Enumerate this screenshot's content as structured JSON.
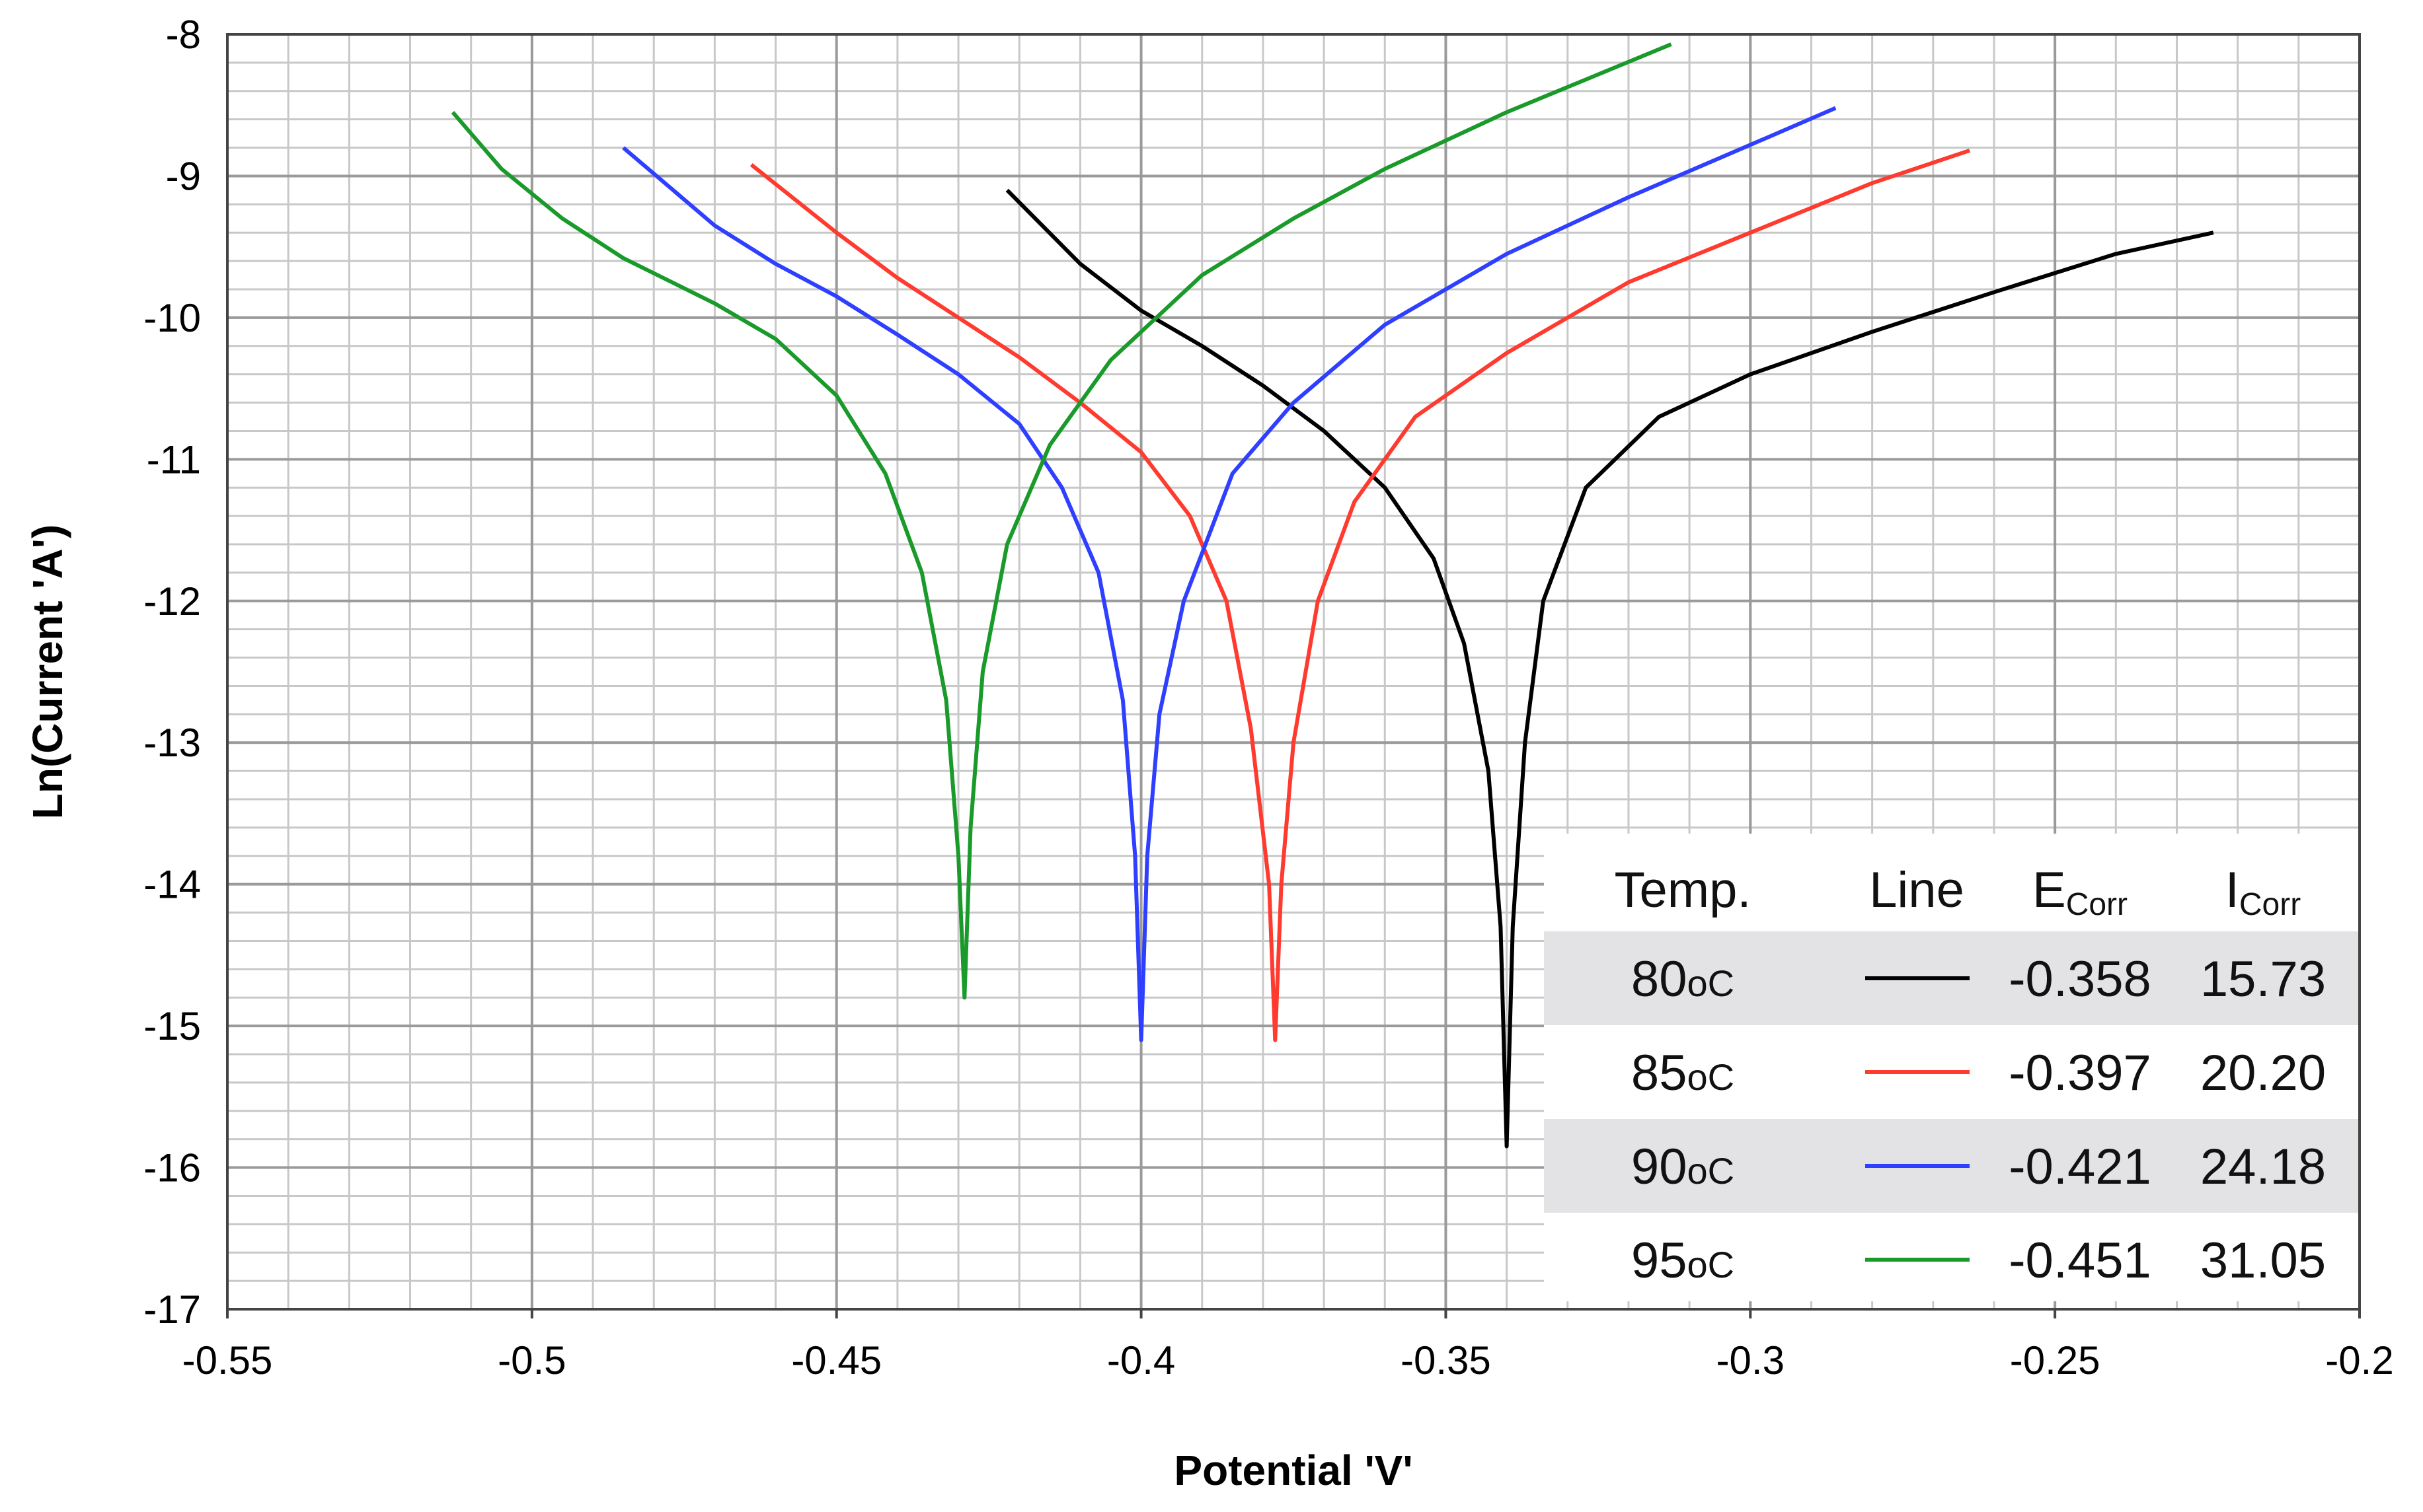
{
  "chart_data": {
    "type": "line",
    "title": "",
    "xlabel": "Potential 'V'",
    "ylabel": "Ln(Current 'A')",
    "xlim": [
      -0.55,
      -0.2
    ],
    "ylim": [
      -17,
      -8
    ],
    "x_major_ticks": [
      -0.55,
      -0.5,
      -0.45,
      -0.4,
      -0.35,
      -0.3,
      -0.25,
      -0.2
    ],
    "x_tick_labels": [
      "-0.55",
      "-0.5",
      "-0.45",
      "-0.4",
      "-0.35",
      "-0.3",
      "-0.25",
      "-0.2"
    ],
    "y_major_ticks": [
      -8,
      -9,
      -10,
      -11,
      -12,
      -13,
      -14,
      -15,
      -16,
      -17
    ],
    "y_tick_labels": [
      "-8",
      "-9",
      "-10",
      "-11",
      "-12",
      "-13",
      "-14",
      "-15",
      "-16",
      "-17"
    ],
    "grid": true,
    "legend_header": {
      "temp": "Temp.",
      "line": "Line",
      "ecorr": "E",
      "ecorr_sub": "Corr",
      "icorr": "I",
      "icorr_sub": "Corr"
    },
    "series": [
      {
        "name": "80oC",
        "temp": "80",
        "unit": "oC",
        "color": "#000000",
        "ecorr": "-0.358",
        "icorr": "15.73",
        "points": [
          [
            -0.422,
            -9.1
          ],
          [
            -0.41,
            -9.62
          ],
          [
            -0.4,
            -9.95
          ],
          [
            -0.39,
            -10.2
          ],
          [
            -0.38,
            -10.48
          ],
          [
            -0.37,
            -10.8
          ],
          [
            -0.36,
            -11.2
          ],
          [
            -0.352,
            -11.7
          ],
          [
            -0.347,
            -12.3
          ],
          [
            -0.343,
            -13.2
          ],
          [
            -0.341,
            -14.3
          ],
          [
            -0.34,
            -15.85
          ],
          [
            -0.339,
            -14.3
          ],
          [
            -0.337,
            -13.0
          ],
          [
            -0.334,
            -12.0
          ],
          [
            -0.327,
            -11.2
          ],
          [
            -0.315,
            -10.7
          ],
          [
            -0.3,
            -10.4
          ],
          [
            -0.28,
            -10.1
          ],
          [
            -0.26,
            -9.82
          ],
          [
            -0.24,
            -9.55
          ],
          [
            -0.224,
            -9.4
          ]
        ]
      },
      {
        "name": "85oC",
        "temp": "85",
        "unit": "oC",
        "color": "#ff3b30",
        "ecorr": "-0.397",
        "icorr": "20.20",
        "points": [
          [
            -0.464,
            -8.92
          ],
          [
            -0.45,
            -9.4
          ],
          [
            -0.44,
            -9.72
          ],
          [
            -0.43,
            -10.0
          ],
          [
            -0.42,
            -10.28
          ],
          [
            -0.41,
            -10.6
          ],
          [
            -0.4,
            -10.95
          ],
          [
            -0.392,
            -11.4
          ],
          [
            -0.386,
            -12.0
          ],
          [
            -0.382,
            -12.9
          ],
          [
            -0.379,
            -14.0
          ],
          [
            -0.378,
            -15.1
          ],
          [
            -0.377,
            -14.0
          ],
          [
            -0.375,
            -13.0
          ],
          [
            -0.371,
            -12.0
          ],
          [
            -0.365,
            -11.3
          ],
          [
            -0.355,
            -10.7
          ],
          [
            -0.34,
            -10.25
          ],
          [
            -0.32,
            -9.75
          ],
          [
            -0.3,
            -9.4
          ],
          [
            -0.28,
            -9.05
          ],
          [
            -0.264,
            -8.82
          ]
        ]
      },
      {
        "name": "90oC",
        "temp": "90",
        "unit": "oC",
        "color": "#2f3fff",
        "ecorr": "-0.421",
        "icorr": "24.18",
        "points": [
          [
            -0.485,
            -8.8
          ],
          [
            -0.47,
            -9.35
          ],
          [
            -0.46,
            -9.62
          ],
          [
            -0.45,
            -9.85
          ],
          [
            -0.44,
            -10.12
          ],
          [
            -0.43,
            -10.4
          ],
          [
            -0.42,
            -10.75
          ],
          [
            -0.413,
            -11.2
          ],
          [
            -0.407,
            -11.8
          ],
          [
            -0.403,
            -12.7
          ],
          [
            -0.401,
            -13.8
          ],
          [
            -0.4,
            -15.1
          ],
          [
            -0.399,
            -13.8
          ],
          [
            -0.397,
            -12.8
          ],
          [
            -0.393,
            -12.0
          ],
          [
            -0.385,
            -11.1
          ],
          [
            -0.375,
            -10.6
          ],
          [
            -0.36,
            -10.05
          ],
          [
            -0.34,
            -9.55
          ],
          [
            -0.32,
            -9.15
          ],
          [
            -0.3,
            -8.78
          ],
          [
            -0.286,
            -8.52
          ]
        ]
      },
      {
        "name": "95oC",
        "temp": "95",
        "unit": "oC",
        "color": "#1a9a2a",
        "ecorr": "-0.451",
        "icorr": "31.05",
        "points": [
          [
            -0.513,
            -8.55
          ],
          [
            -0.505,
            -8.95
          ],
          [
            -0.495,
            -9.3
          ],
          [
            -0.485,
            -9.58
          ],
          [
            -0.47,
            -9.9
          ],
          [
            -0.46,
            -10.15
          ],
          [
            -0.45,
            -10.55
          ],
          [
            -0.442,
            -11.1
          ],
          [
            -0.436,
            -11.8
          ],
          [
            -0.432,
            -12.7
          ],
          [
            -0.43,
            -13.8
          ],
          [
            -0.429,
            -14.8
          ],
          [
            -0.428,
            -13.6
          ],
          [
            -0.426,
            -12.5
          ],
          [
            -0.422,
            -11.6
          ],
          [
            -0.415,
            -10.9
          ],
          [
            -0.405,
            -10.3
          ],
          [
            -0.39,
            -9.7
          ],
          [
            -0.375,
            -9.3
          ],
          [
            -0.36,
            -8.95
          ],
          [
            -0.34,
            -8.55
          ],
          [
            -0.313,
            -8.07
          ]
        ]
      }
    ]
  }
}
